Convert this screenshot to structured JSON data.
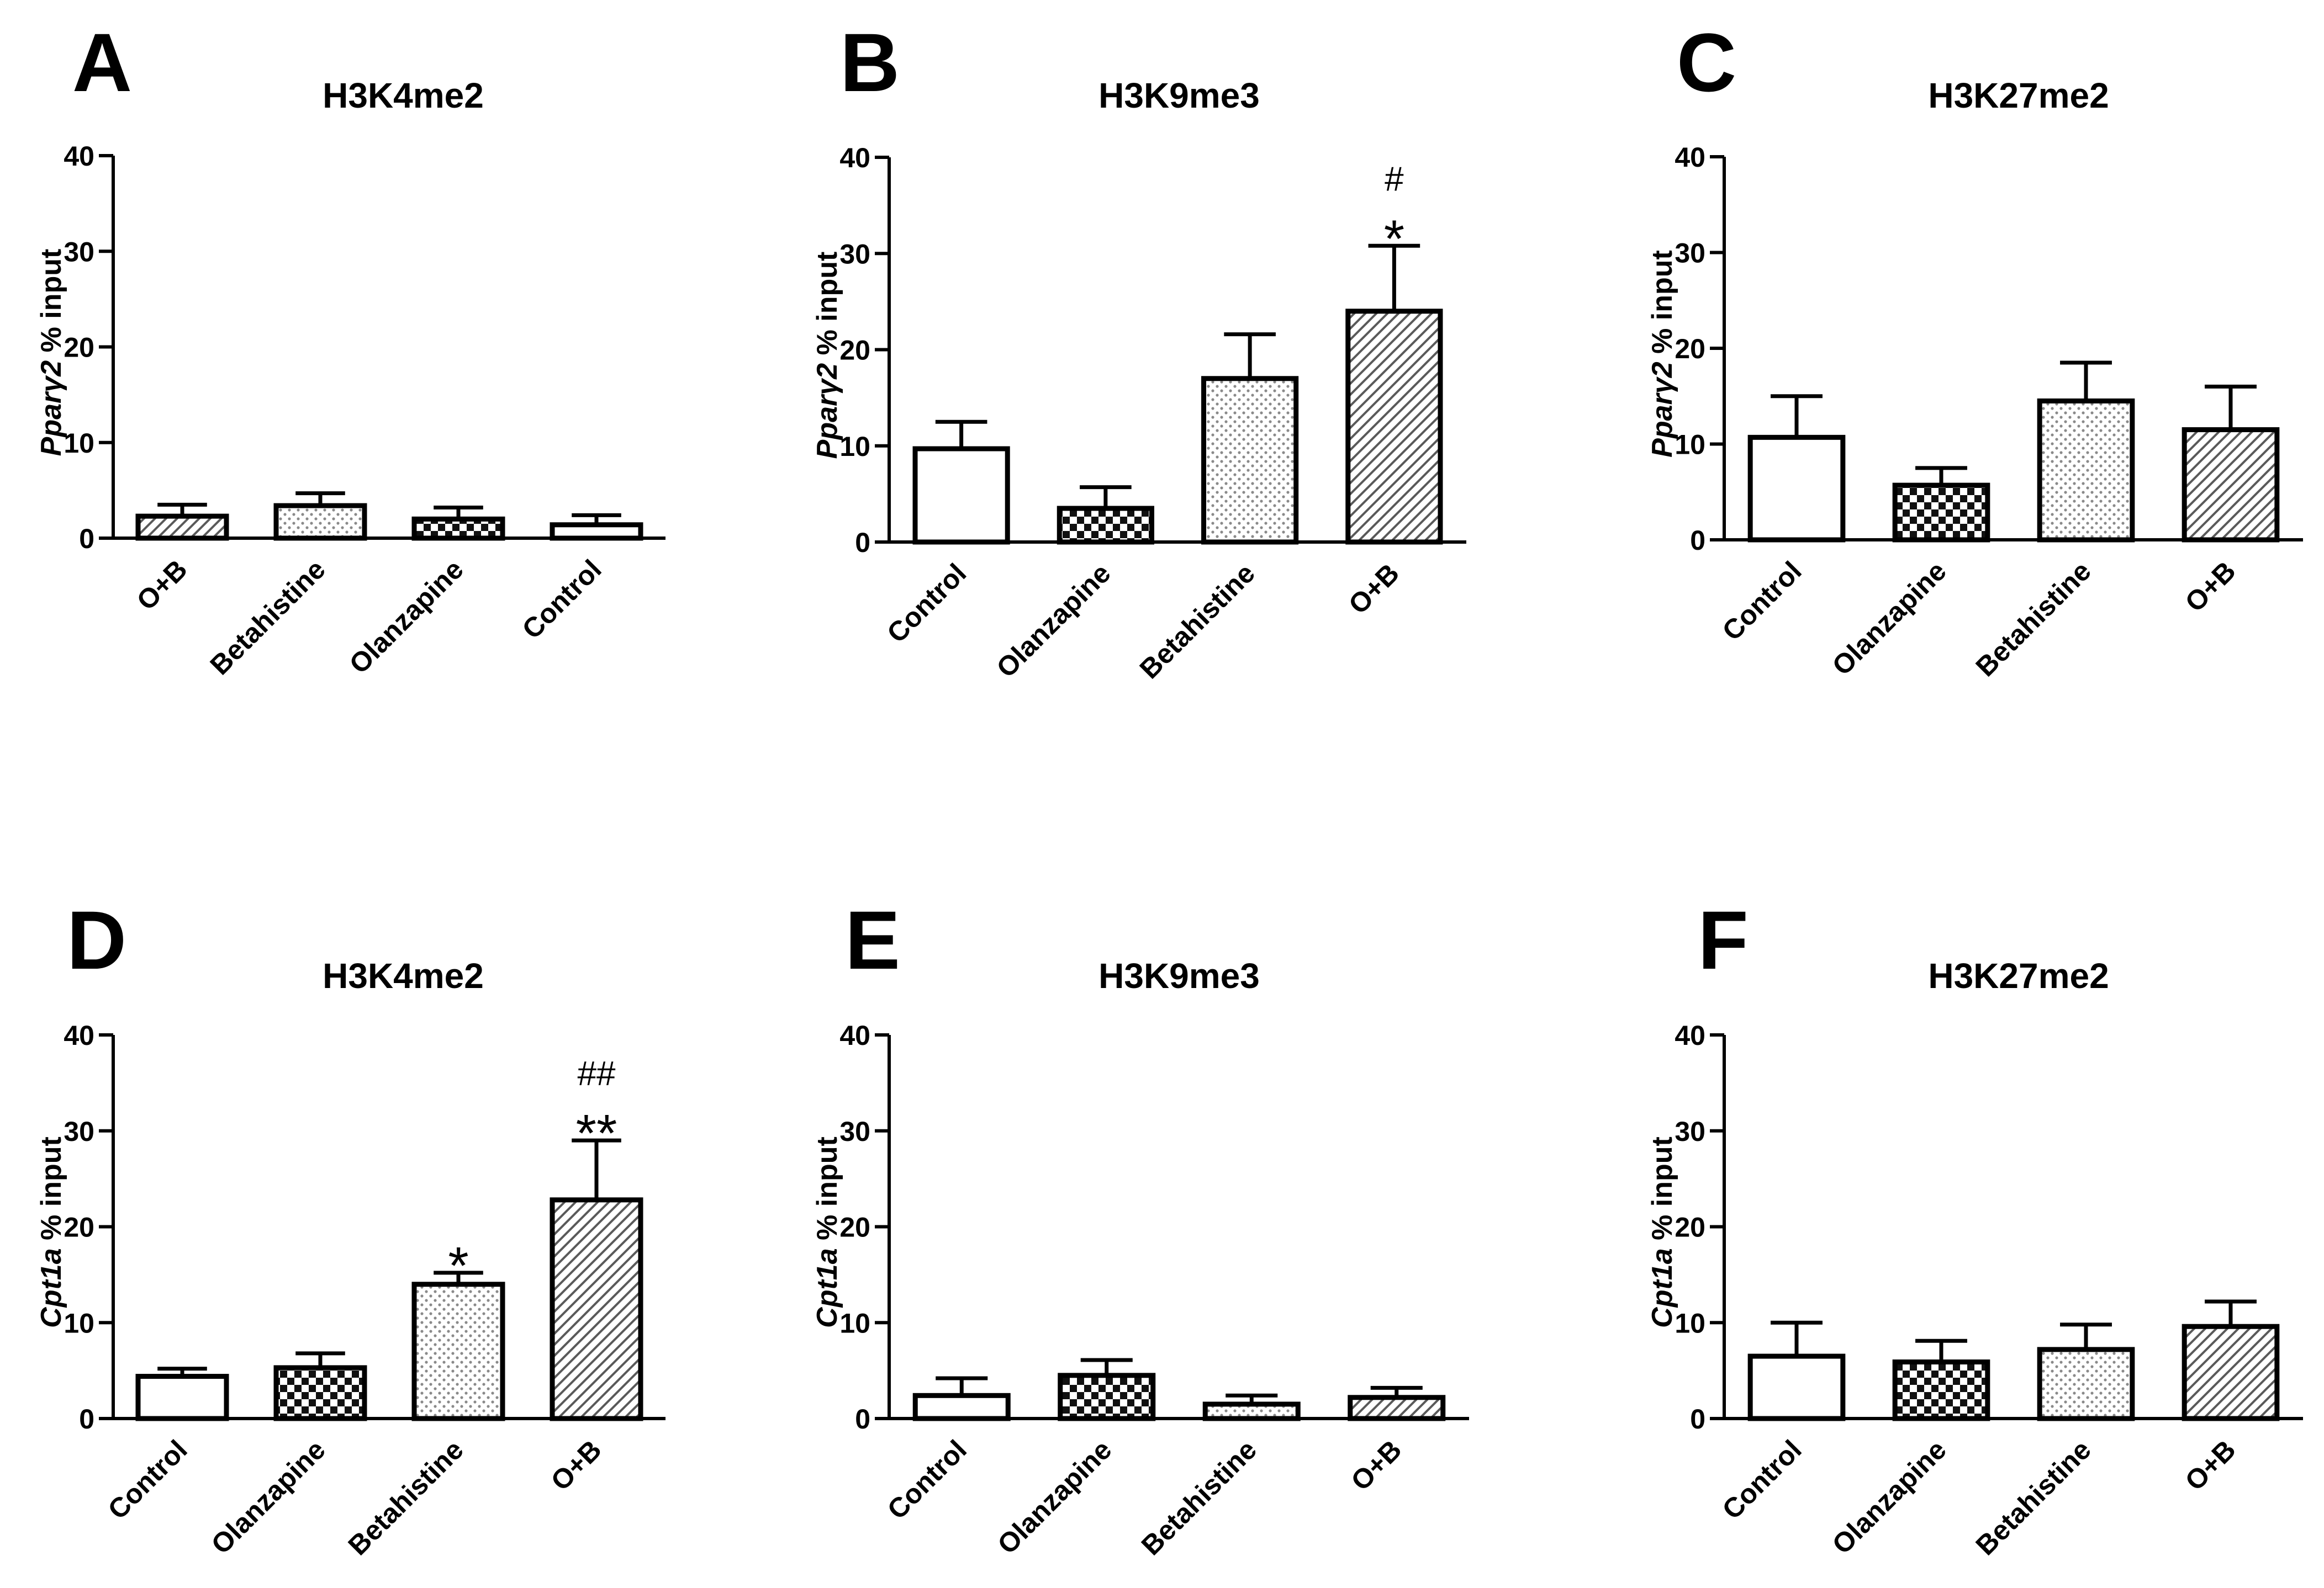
{
  "chart_data": [
    {
      "panel": "A",
      "type": "bar",
      "title": "H3K4me2",
      "ylabel_gene": "Pparγ2",
      "ylabel_rest": " % input",
      "ylim": [
        0,
        40
      ],
      "yticks": [
        "0",
        "10",
        "20",
        "30",
        "40"
      ],
      "categories": [
        "O+B",
        "Betahistine",
        "Olanzapine",
        "Control"
      ],
      "values": [
        2.3,
        3.4,
        2.0,
        1.4
      ],
      "errors": [
        1.2,
        1.3,
        1.2,
        1.0
      ],
      "patterns": [
        "diagonal",
        "dotted",
        "checker",
        "white"
      ],
      "significance": [
        [],
        [],
        [],
        []
      ]
    },
    {
      "panel": "B",
      "type": "bar",
      "title": "H3K9me3",
      "ylabel_gene": "Pparγ2",
      "ylabel_rest": " % input",
      "ylim": [
        0,
        40
      ],
      "yticks": [
        "0",
        "10",
        "20",
        "30",
        "40"
      ],
      "categories": [
        "Control",
        "Olanzapine",
        "Betahistine",
        "O+B"
      ],
      "values": [
        9.7,
        3.5,
        17.0,
        24.0
      ],
      "errors": [
        2.8,
        2.2,
        4.6,
        6.8
      ],
      "patterns": [
        "white",
        "checker",
        "dotted",
        "diagonal"
      ],
      "significance": [
        [],
        [],
        [],
        [
          "*",
          "#"
        ]
      ]
    },
    {
      "panel": "C",
      "type": "bar",
      "title": "H3K27me2",
      "ylabel_gene": "Pparγ2",
      "ylabel_rest": " % input",
      "ylim": [
        0,
        40
      ],
      "yticks": [
        "0",
        "10",
        "20",
        "30",
        "40"
      ],
      "categories": [
        "Control",
        "Olanzapine",
        "Betahistine",
        "O+B"
      ],
      "values": [
        10.7,
        5.7,
        14.5,
        11.5
      ],
      "errors": [
        4.3,
        1.8,
        4.0,
        4.5
      ],
      "patterns": [
        "white",
        "checker",
        "dotted",
        "diagonal"
      ],
      "significance": [
        [],
        [],
        [],
        []
      ]
    },
    {
      "panel": "D",
      "type": "bar",
      "title": "H3K4me2",
      "ylabel_gene": "Cpt1a",
      "ylabel_rest": " % input",
      "ylim": [
        0,
        40
      ],
      "yticks": [
        "0",
        "10",
        "20",
        "30",
        "40"
      ],
      "categories": [
        "Control",
        "Olanzapine",
        "Betahistine",
        "O+B"
      ],
      "values": [
        4.4,
        5.3,
        14.0,
        22.8
      ],
      "errors": [
        0.8,
        1.5,
        1.2,
        6.2
      ],
      "patterns": [
        "white",
        "checker",
        "dotted",
        "diagonal"
      ],
      "significance": [
        [],
        [],
        [
          "*"
        ],
        [
          "**",
          "##"
        ]
      ]
    },
    {
      "panel": "E",
      "type": "bar",
      "title": "H3K9me3",
      "ylabel_gene": "Cpt1a",
      "ylabel_rest": " % input",
      "ylim": [
        0,
        40
      ],
      "yticks": [
        "0",
        "10",
        "20",
        "30",
        "40"
      ],
      "categories": [
        "Control",
        "Olanzapine",
        "Betahistine",
        "O+B"
      ],
      "values": [
        2.4,
        4.5,
        1.5,
        2.2
      ],
      "errors": [
        1.8,
        1.6,
        0.9,
        1.0
      ],
      "patterns": [
        "white",
        "checker",
        "dotted",
        "diagonal"
      ],
      "significance": [
        [],
        [],
        [],
        []
      ]
    },
    {
      "panel": "F",
      "type": "bar",
      "title": "H3K27me2",
      "ylabel_gene": "Cpt1a",
      "ylabel_rest": " % input",
      "ylim": [
        0,
        40
      ],
      "yticks": [
        "0",
        "10",
        "20",
        "30",
        "40"
      ],
      "categories": [
        "Control",
        "Olanzapine",
        "Betahistine",
        "O+B"
      ],
      "values": [
        6.5,
        5.9,
        7.2,
        9.6
      ],
      "errors": [
        3.5,
        2.2,
        2.6,
        2.6
      ],
      "patterns": [
        "white",
        "checker",
        "dotted",
        "diagonal"
      ],
      "significance": [
        [],
        [],
        [],
        []
      ]
    }
  ]
}
